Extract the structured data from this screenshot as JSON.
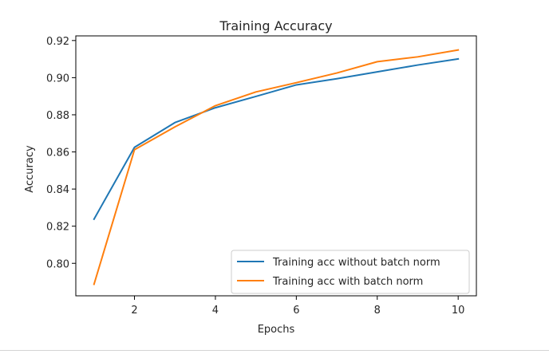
{
  "chart_data": {
    "type": "line",
    "title": "Training Accuracy",
    "xlabel": "Epochs",
    "ylabel": "Accuracy",
    "xlim": [
      0.55,
      10.45
    ],
    "ylim": [
      0.7825,
      0.9225
    ],
    "xticks": [
      2,
      4,
      6,
      8,
      10
    ],
    "yticks": [
      0.8,
      0.82,
      0.84,
      0.86,
      0.88,
      0.9,
      0.92
    ],
    "ytick_labels": [
      "0.80",
      "0.82",
      "0.84",
      "0.86",
      "0.88",
      "0.90",
      "0.92"
    ],
    "grid": false,
    "legend": "lower-right",
    "x": [
      1,
      2,
      3,
      4,
      5,
      6,
      7,
      8,
      9,
      10
    ],
    "series": [
      {
        "name": "Training acc without batch norm",
        "color": "#1f77b4",
        "values": [
          0.8238,
          0.8625,
          0.8758,
          0.8838,
          0.8899,
          0.8961,
          0.8994,
          0.9031,
          0.9068,
          0.9101
        ]
      },
      {
        "name": "Training acc with batch norm",
        "color": "#ff7f0e",
        "values": [
          0.7887,
          0.8612,
          0.8735,
          0.8849,
          0.8923,
          0.8973,
          0.9025,
          0.9086,
          0.9112,
          0.9149
        ]
      }
    ]
  }
}
